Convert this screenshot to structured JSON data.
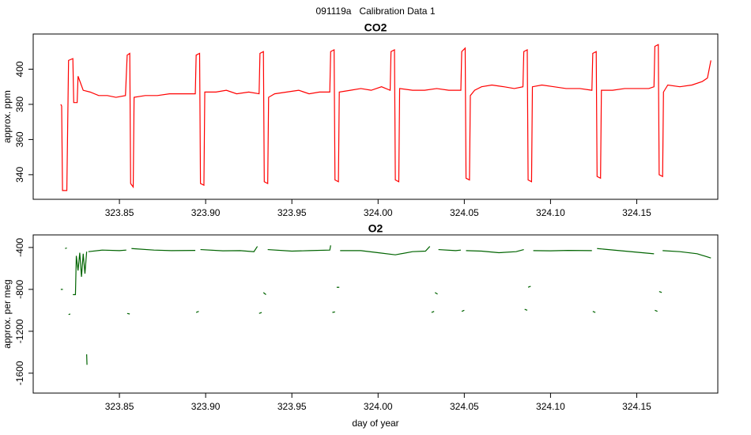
{
  "title": "091119a   Calibration Data 1",
  "chart_data": [
    {
      "type": "line",
      "title": "CO2",
      "ylabel": "approx. ppm",
      "color": "#ff0000",
      "xlim": [
        323.8,
        324.197
      ],
      "ylim": [
        326,
        420
      ],
      "xticks": [
        323.85,
        {
          "value": 323.9,
          "label": "323.90"
        },
        323.95,
        {
          "value": 324.0,
          "label": "324.00"
        },
        324.05,
        {
          "value": 324.1,
          "label": "324.10"
        },
        324.15
      ],
      "yticks": [
        340,
        360,
        380,
        400
      ],
      "x": [
        323.816,
        323.8165,
        323.817,
        323.8195,
        323.8205,
        323.823,
        323.8235,
        323.8255,
        323.826,
        323.8275,
        323.829,
        323.833,
        323.838,
        323.843,
        323.848,
        323.8535,
        323.8545,
        323.856,
        323.8565,
        323.858,
        323.8585,
        323.865,
        323.872,
        323.879,
        323.886,
        323.894,
        323.8945,
        323.8965,
        323.897,
        323.899,
        323.8995,
        323.906,
        323.912,
        323.918,
        323.925,
        323.931,
        323.9315,
        323.9335,
        323.934,
        323.936,
        323.9365,
        323.94,
        323.947,
        323.954,
        323.96,
        323.966,
        323.972,
        323.9725,
        323.9745,
        323.975,
        323.977,
        323.9775,
        323.984,
        323.99,
        323.996,
        324.002,
        324.007,
        324.0075,
        324.0095,
        324.01,
        324.012,
        324.0125,
        324.02,
        324.027,
        324.034,
        324.041,
        324.048,
        324.0485,
        324.0505,
        324.051,
        324.053,
        324.0535,
        324.056,
        324.06,
        324.066,
        324.073,
        324.079,
        324.084,
        324.0845,
        324.0865,
        324.087,
        324.089,
        324.0895,
        324.095,
        324.102,
        324.109,
        324.117,
        324.124,
        324.1245,
        324.1265,
        324.127,
        324.129,
        324.1295,
        324.136,
        324.143,
        324.15,
        324.157,
        324.16,
        324.1605,
        324.1625,
        324.163,
        324.165,
        324.1655,
        324.168,
        324.175,
        324.182,
        324.188,
        324.191,
        324.193
      ],
      "values": [
        380,
        379,
        331,
        331,
        405,
        406,
        381,
        381,
        396,
        392,
        388,
        387,
        385,
        385,
        384,
        385,
        408,
        409,
        335,
        333,
        384,
        385,
        385,
        386,
        386,
        386,
        408,
        409,
        335,
        334,
        387,
        387,
        388,
        386,
        387,
        386,
        409,
        410,
        336,
        335,
        384,
        386,
        387,
        388,
        386,
        387,
        387,
        410,
        411,
        337,
        336,
        387,
        388,
        389,
        388,
        390,
        388,
        410,
        411,
        337,
        336,
        389,
        388,
        388,
        389,
        388,
        388,
        410,
        412,
        338,
        337,
        385,
        388,
        390,
        391,
        390,
        389,
        390,
        410,
        411,
        337,
        336,
        390,
        391,
        390,
        389,
        389,
        388,
        409,
        410,
        339,
        338,
        388,
        388,
        389,
        389,
        389,
        390,
        413,
        414,
        340,
        339,
        387,
        391,
        390,
        391,
        393,
        395,
        405
      ]
    },
    {
      "type": "line",
      "title": "O2",
      "xlabel": "day of year",
      "ylabel": "approx. per meg",
      "color": "#006400",
      "xlim": [
        323.8,
        324.197
      ],
      "ylim": [
        -1790,
        -280
      ],
      "xticks": [
        323.85,
        {
          "value": 323.9,
          "label": "323.90"
        },
        323.95,
        {
          "value": 324.0,
          "label": "324.00"
        },
        324.05,
        {
          "value": 324.1,
          "label": "324.10"
        },
        324.15
      ],
      "yticks": [
        -1600,
        -1200,
        -800,
        -400
      ],
      "x": [
        323.816,
        323.8172,
        null,
        323.8185,
        323.8195,
        null,
        323.8205,
        323.8215,
        null,
        323.823,
        323.8245,
        323.825,
        323.826,
        323.827,
        323.828,
        323.829,
        323.83,
        323.831,
        null,
        323.831,
        323.8312,
        null,
        323.832,
        323.84,
        323.85,
        323.854,
        null,
        323.8545,
        323.856,
        null,
        323.857,
        323.87,
        323.88,
        323.894,
        null,
        323.8945,
        323.896,
        null,
        323.897,
        323.91,
        323.92,
        323.928,
        323.93,
        null,
        323.931,
        323.9325,
        null,
        323.9335,
        323.935,
        null,
        323.936,
        323.95,
        323.96,
        323.972,
        323.9725,
        null,
        323.9735,
        323.975,
        null,
        323.976,
        323.9775,
        null,
        323.978,
        323.99,
        324.0,
        324.01,
        324.02,
        324.0275,
        324.03,
        null,
        324.031,
        324.0325,
        null,
        324.033,
        324.0345,
        null,
        324.035,
        324.045,
        324.048,
        null,
        324.0485,
        324.05,
        null,
        324.051,
        324.06,
        324.07,
        324.08,
        324.0845,
        null,
        324.085,
        324.0865,
        null,
        324.087,
        324.0885,
        null,
        324.09,
        324.1,
        324.11,
        324.124,
        null,
        324.1245,
        324.126,
        null,
        324.127,
        324.14,
        324.15,
        324.16,
        null,
        324.1605,
        324.162,
        null,
        324.163,
        324.1645,
        null,
        324.165,
        324.175,
        324.185,
        324.193
      ],
      "values": [
        -800,
        -800,
        null,
        -410,
        -405,
        null,
        -1040,
        -1035,
        null,
        -850,
        -850,
        -480,
        -620,
        -450,
        -680,
        -460,
        -650,
        -440,
        null,
        -1420,
        -1520,
        null,
        -440,
        -425,
        -430,
        -425,
        null,
        -1030,
        -1035,
        null,
        -410,
        -425,
        -430,
        -428,
        null,
        -1020,
        -1010,
        null,
        -420,
        -432,
        -430,
        -440,
        -390,
        null,
        -1030,
        -1020,
        null,
        -830,
        -850,
        null,
        -420,
        -435,
        -430,
        -425,
        -380,
        null,
        -1020,
        -1015,
        null,
        -780,
        -780,
        null,
        -430,
        -430,
        -450,
        -470,
        -440,
        -435,
        -390,
        null,
        -1020,
        -1010,
        null,
        -830,
        -845,
        null,
        -420,
        -430,
        -425,
        null,
        -1010,
        -1000,
        null,
        -430,
        -435,
        -450,
        -440,
        -420,
        null,
        -990,
        -1000,
        null,
        -780,
        -770,
        null,
        -430,
        -432,
        -428,
        -430,
        null,
        -1010,
        -1020,
        null,
        -410,
        -430,
        -445,
        -460,
        null,
        -1000,
        -1010,
        null,
        -820,
        -830,
        null,
        -430,
        -440,
        -460,
        -500
      ]
    }
  ]
}
